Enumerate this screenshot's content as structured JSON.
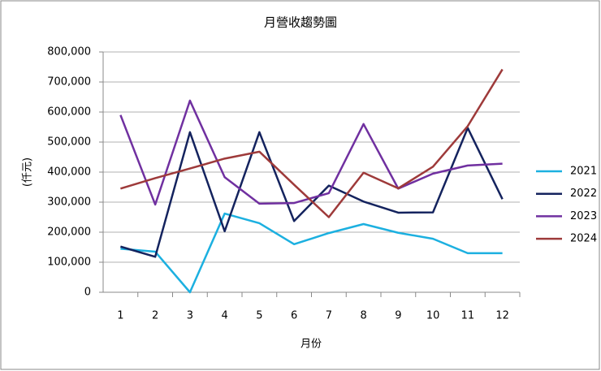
{
  "chart_data": {
    "type": "line",
    "title": "月營收趨勢圖",
    "y_label": "(仟元)",
    "x_label": "月份",
    "categories": [
      "1",
      "2",
      "3",
      "4",
      "5",
      "6",
      "7",
      "8",
      "9",
      "10",
      "11",
      "12"
    ],
    "series": [
      {
        "name": "2021",
        "color": "#1cb0e0",
        "values": [
          145000,
          135000,
          0,
          262000,
          230000,
          160000,
          197000,
          227000,
          198000,
          178000,
          130000,
          130000
        ]
      },
      {
        "name": "2022",
        "color": "#14235e",
        "values": [
          152000,
          118000,
          533000,
          203000,
          533000,
          237000,
          355000,
          302000,
          265000,
          266000,
          547000,
          310000
        ]
      },
      {
        "name": "2023",
        "color": "#7030a0",
        "values": [
          590000,
          292000,
          638000,
          383000,
          295000,
          297000,
          330000,
          560000,
          345000,
          395000,
          422000,
          428000
        ]
      },
      {
        "name": "2024",
        "color": "#9e3a3a",
        "values": [
          345000,
          380000,
          412000,
          445000,
          468000,
          358000,
          250000,
          398000,
          346000,
          418000,
          553000,
          742000
        ]
      }
    ],
    "ylim": [
      0,
      800000
    ],
    "yticks": [
      0,
      {
        "value": 100000,
        "label": "100,000"
      },
      {
        "value": 200000,
        "label": "200,000"
      },
      {
        "value": 300000,
        "label": "300,000"
      },
      {
        "value": 400000,
        "label": "400,000"
      },
      {
        "value": 500000,
        "label": "500,000"
      },
      {
        "value": 600000,
        "label": "600,000"
      },
      {
        "value": 700000,
        "label": "700,000"
      },
      {
        "value": 800000,
        "label": "800,000"
      }
    ],
    "grid": true,
    "legend": "right"
  }
}
